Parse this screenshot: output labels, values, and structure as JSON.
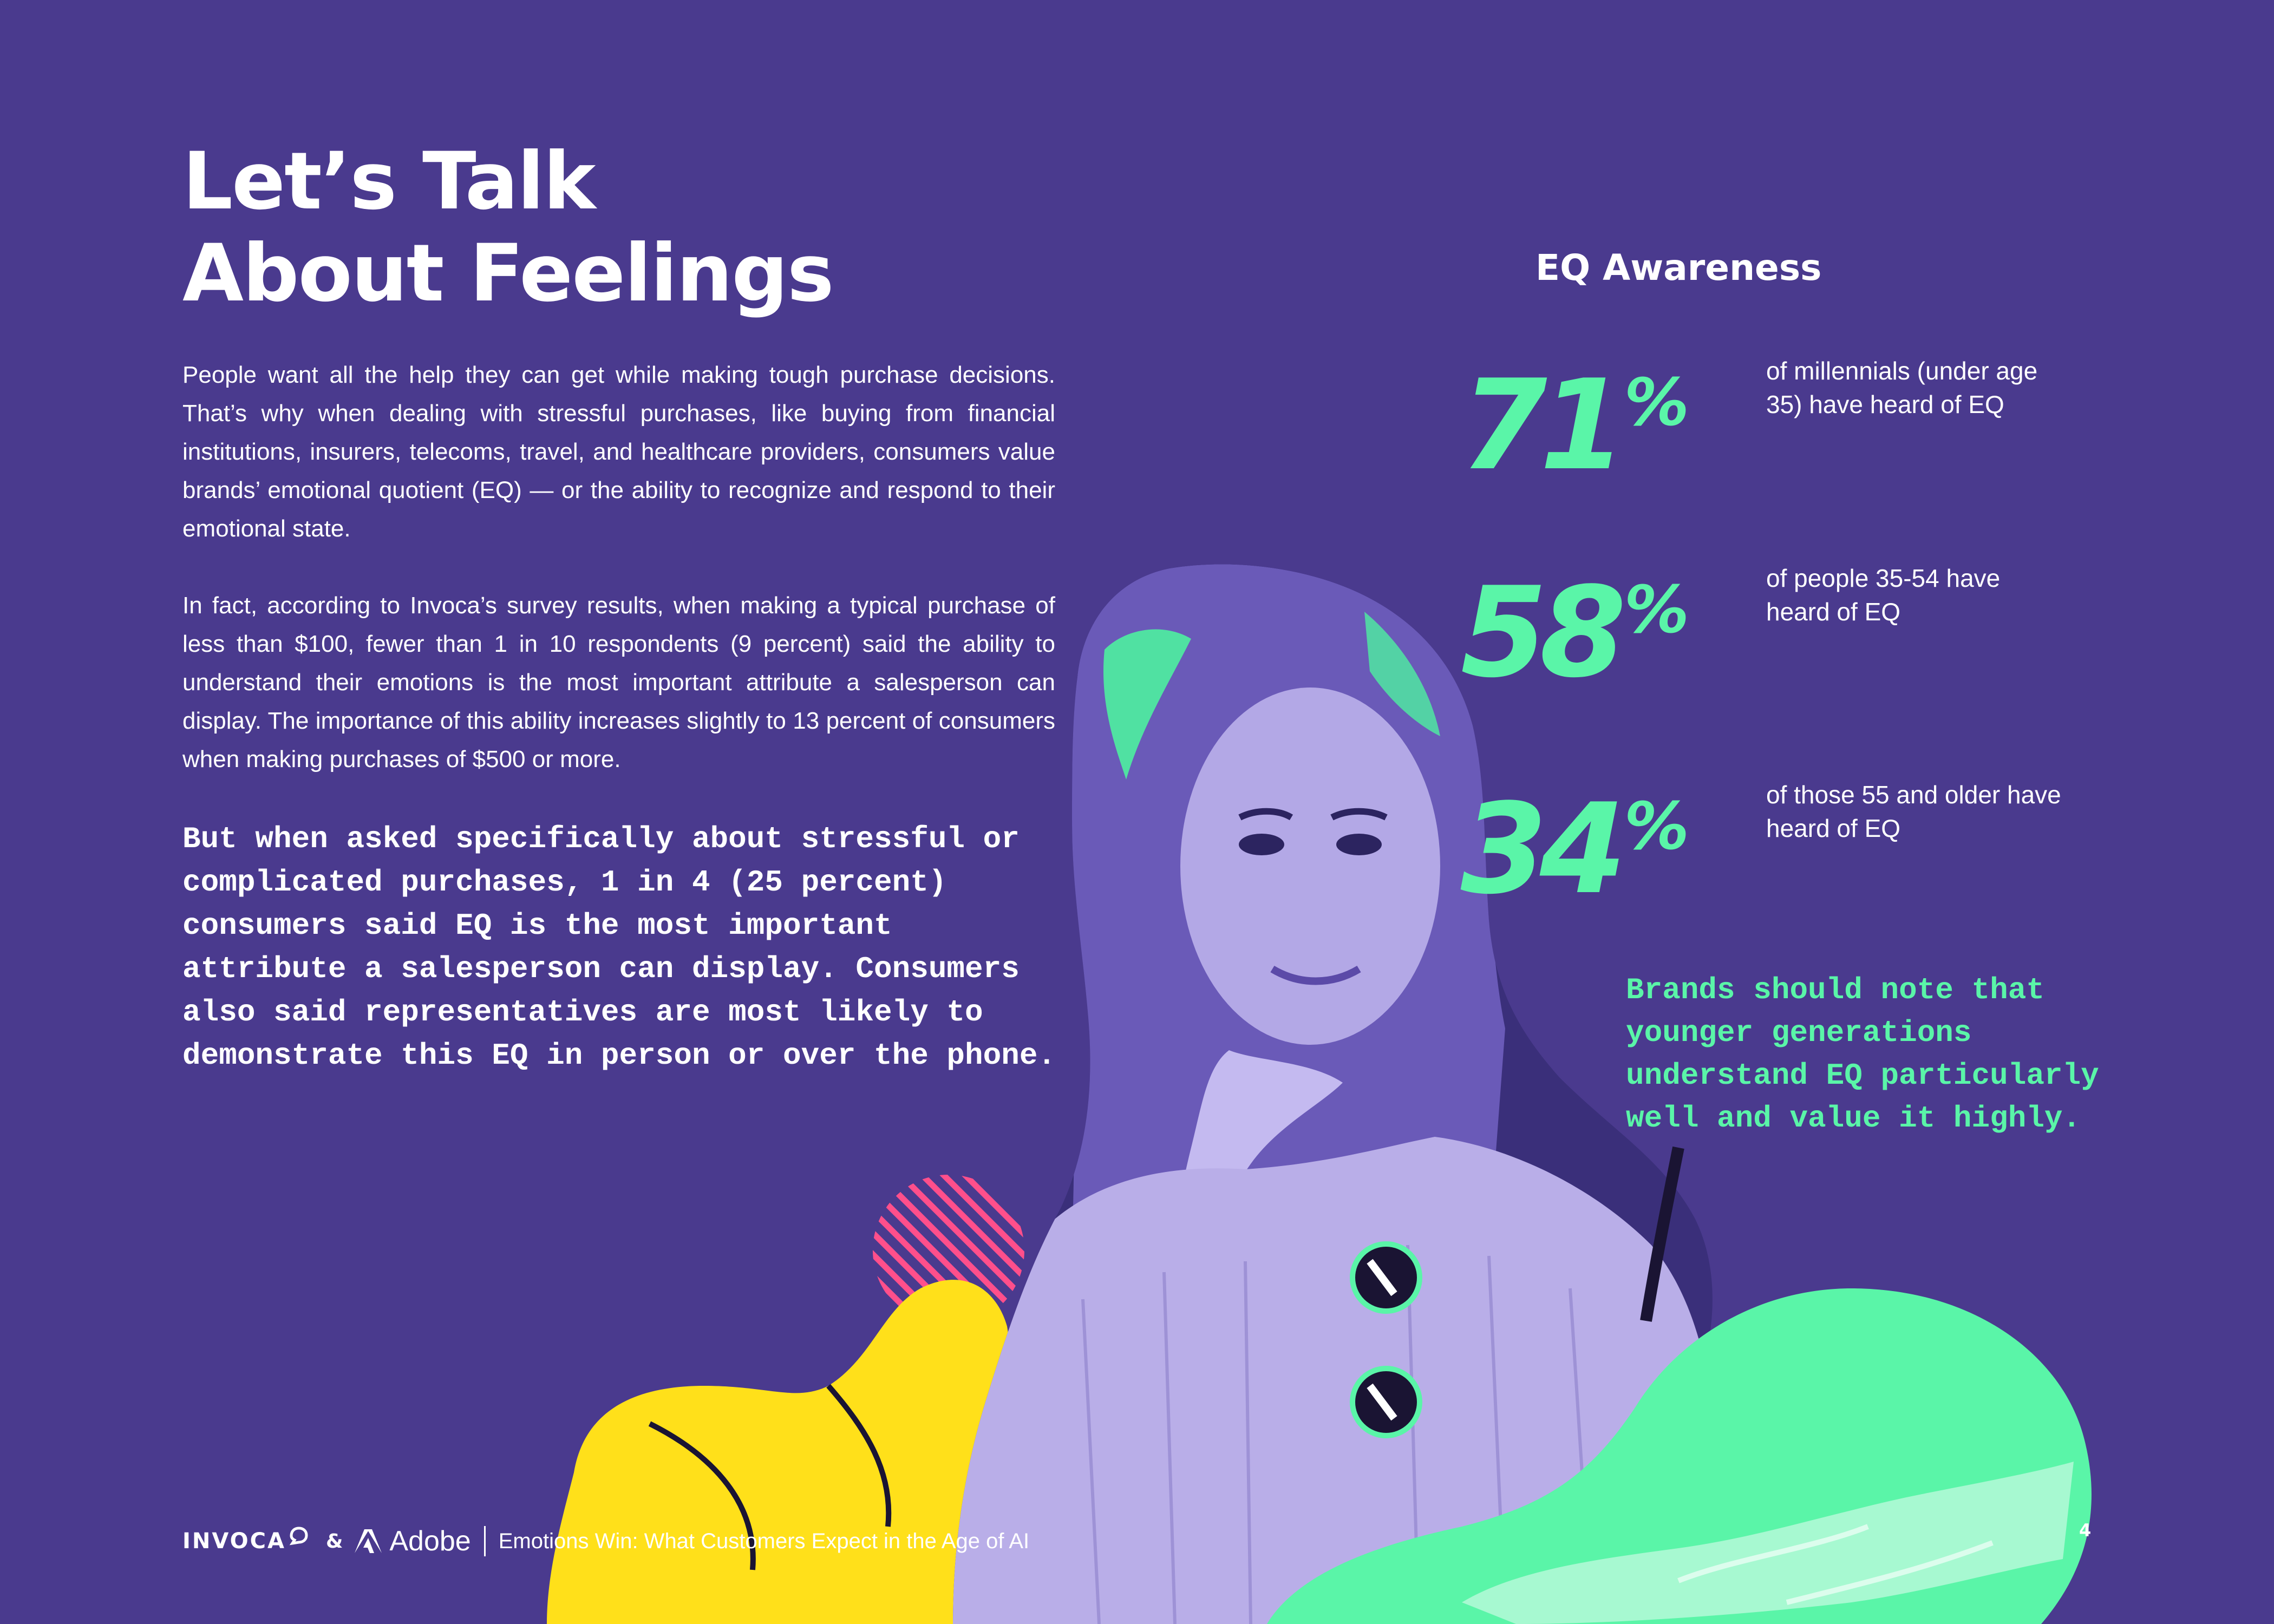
{
  "title": {
    "line1": "Let’s Talk",
    "line2": "About Feelings"
  },
  "body": {
    "paragraph1": "People want all the help they can get while making tough purchase decisions. That’s why when dealing with stressful purchases, like buying from financial institutions, insurers, telecoms, travel, and healthcare providers, consumers value brands’ emotional quotient (EQ) — or the ability to recognize and respond to their emotional state.",
    "paragraph2": "In fact, according to Invoca’s survey results, when making a typical purchase of less than $100, fewer than 1 in 10 respondents (9 percent) said the ability to understand their emotions is the most important attribute a salesperson can display. The importance of this ability increases slightly to 13 percent of consumers when making purchases of $500 or more.",
    "highlight": "But when asked specifically about stressful or complicated purchases, 1 in 4 (25 percent) consumers said EQ is the most important attribute a salesperson can display. Consumers also said representatives are most likely to demonstrate this EQ in person or over the phone."
  },
  "eq_awareness": {
    "heading": "EQ Awareness",
    "stats": [
      {
        "value": "71",
        "unit": "%",
        "label": "of millennials (under age 35) have heard of EQ"
      },
      {
        "value": "58",
        "unit": "%",
        "label": "of people 35-54 have heard of EQ"
      },
      {
        "value": "34",
        "unit": "%",
        "label": "of those 55 and older have heard of EQ"
      }
    ]
  },
  "side_quote": "Brands should note that younger generations understand EQ particularly well and value it highly.",
  "footer": {
    "invoca_logo": "INVOCA",
    "ampersand": "&",
    "adobe_logo": "Adobe",
    "document_title": "Emotions Win: What Customers Expect in the Age of AI"
  },
  "page_number": "4",
  "colors": {
    "background": "#4a3a8e",
    "accent_green": "#5af5a8",
    "accent_yellow": "#ffe01a",
    "accent_pink": "#ff4f8b",
    "photo_tint": "#b3a8e6"
  }
}
